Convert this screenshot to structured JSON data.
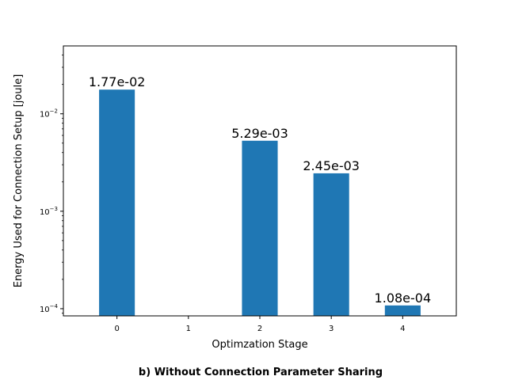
{
  "chart_data": {
    "type": "bar",
    "categories": [
      "0",
      "1",
      "2",
      "3",
      "4"
    ],
    "values": [
      0.0177,
      null,
      0.00529,
      0.00245,
      0.000108
    ],
    "data_labels": [
      "1.77e-02",
      "",
      "5.29e-03",
      "2.45e-03",
      "1.08e-04"
    ],
    "xlabel": "Optimzation Stage",
    "ylabel": "Energy Used for Connection Setup [joule]",
    "yscale": "log",
    "ylim": [
      8.44e-05,
      0.0497
    ],
    "yticks": [
      {
        "value": 0.0001,
        "base": "10",
        "exp": "−4"
      },
      {
        "value": 0.001,
        "base": "10",
        "exp": "−3"
      },
      {
        "value": 0.01,
        "base": "10",
        "exp": "−2"
      }
    ],
    "grid": false,
    "bar_color": "#1f77b4"
  },
  "caption": "b) Without Connection Parameter Sharing"
}
